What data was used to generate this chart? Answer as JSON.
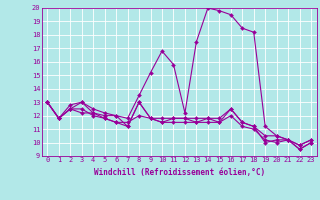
{
  "title": "",
  "xlabel": "Windchill (Refroidissement éolien,°C)",
  "bg_color": "#b2e8e8",
  "grid_color": "#ffffff",
  "line_color": "#990099",
  "xlim": [
    -0.5,
    23.5
  ],
  "ylim": [
    9,
    20
  ],
  "xticks": [
    0,
    1,
    2,
    3,
    4,
    5,
    6,
    7,
    8,
    9,
    10,
    11,
    12,
    13,
    14,
    15,
    16,
    17,
    18,
    19,
    20,
    21,
    22,
    23
  ],
  "yticks": [
    9,
    10,
    11,
    12,
    13,
    14,
    15,
    16,
    17,
    18,
    19,
    20
  ],
  "lines": [
    [
      13.0,
      11.8,
      12.5,
      13.0,
      12.2,
      12.0,
      12.0,
      11.2,
      13.0,
      11.8,
      11.5,
      11.5,
      11.5,
      11.5,
      11.5,
      11.5,
      12.5,
      11.5,
      11.2,
      10.0,
      10.2,
      10.2,
      9.8,
      10.2
    ],
    [
      13.0,
      11.8,
      12.5,
      12.2,
      12.2,
      11.8,
      11.5,
      11.2,
      13.0,
      11.8,
      11.8,
      11.8,
      11.8,
      11.8,
      11.8,
      11.8,
      12.5,
      11.5,
      11.2,
      10.5,
      10.5,
      10.2,
      9.8,
      10.2
    ],
    [
      13.0,
      11.8,
      12.8,
      13.0,
      12.5,
      12.2,
      12.0,
      11.8,
      13.5,
      15.2,
      16.8,
      15.8,
      12.2,
      17.5,
      20.0,
      19.8,
      19.5,
      18.5,
      18.2,
      11.2,
      10.5,
      10.2,
      9.5,
      10.0
    ],
    [
      13.0,
      11.8,
      12.5,
      12.5,
      12.0,
      11.8,
      11.5,
      11.5,
      12.0,
      11.8,
      11.5,
      11.8,
      11.8,
      11.5,
      11.8,
      11.5,
      12.0,
      11.2,
      11.0,
      10.2,
      10.0,
      10.2,
      9.5,
      10.0
    ]
  ],
  "label_fontsize": 5.0,
  "xlabel_fontsize": 5.5,
  "marker_size": 2.0,
  "line_width": 0.8
}
